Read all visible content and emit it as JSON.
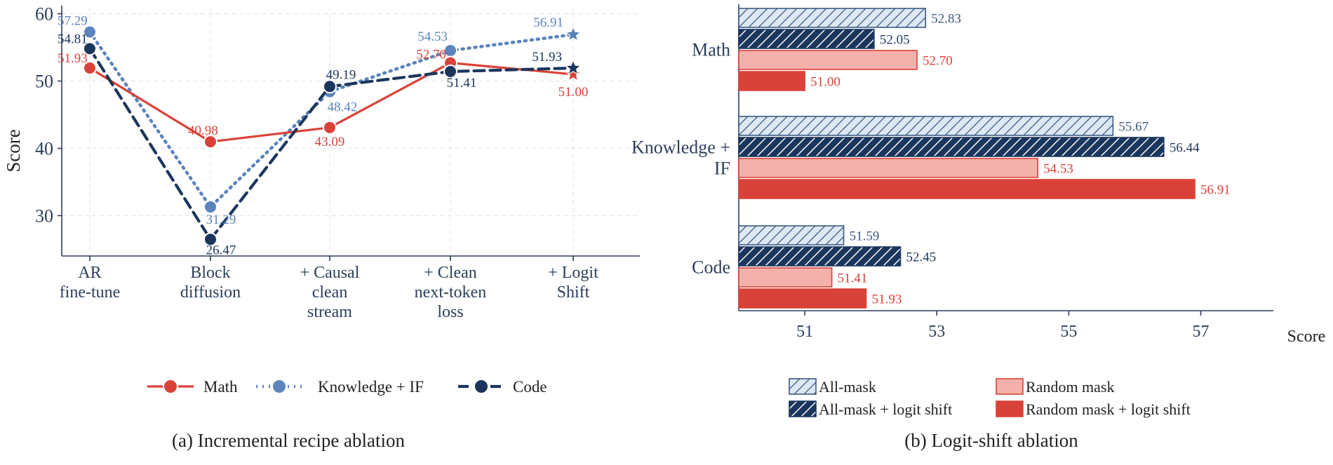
{
  "colors": {
    "math": "#d94238",
    "knowledge": "#5b84bc",
    "code": "#1b365d",
    "allmask_fill": "#dde8f4",
    "allmask_stroke": "#3d5a80",
    "allmask_shift_fill": "#1b365d",
    "random_fill": "#f4b1ac",
    "random_stroke": "#d94238",
    "random_shift_fill": "#d94238",
    "axis": "#2b3f5c",
    "grid": "#e3e6ea",
    "text": "#2b3f5c"
  },
  "chart_data": [
    {
      "id": "a",
      "type": "line",
      "caption": "(a) Incremental recipe ablation",
      "ylabel": "Score",
      "ylim": [
        24,
        61
      ],
      "yticks": [
        30,
        40,
        50,
        60
      ],
      "grid": true,
      "legend_position": "bottom",
      "categories": [
        [
          "AR",
          "fine-tune"
        ],
        [
          "Block",
          "diffusion"
        ],
        [
          "+ Causal",
          "clean",
          "stream"
        ],
        [
          "+ Clean",
          "next-token",
          "loss"
        ],
        [
          "+ Logit",
          "Shift"
        ]
      ],
      "series": [
        {
          "name": "Math",
          "key": "math",
          "dash": "solid",
          "values": [
            51.93,
            40.98,
            43.09,
            52.7,
            51.0
          ],
          "labels": [
            "51.93",
            "40.98",
            "43.09",
            "52.70",
            "51.00"
          ]
        },
        {
          "name": "Knowledge + IF",
          "key": "knowledge",
          "dash": "dotted",
          "values": [
            57.29,
            31.29,
            48.42,
            54.53,
            56.91
          ],
          "labels": [
            "57.29",
            "31.29",
            "48.42",
            "54.53",
            "56.91"
          ]
        },
        {
          "name": "Code",
          "key": "code",
          "dash": "dashed",
          "values": [
            54.81,
            26.47,
            49.19,
            51.41,
            51.93
          ],
          "labels": [
            "54.81",
            "26.47",
            "49.19",
            "51.41",
            "51.93"
          ]
        }
      ]
    },
    {
      "id": "b",
      "type": "bar",
      "orientation": "horizontal",
      "caption": "(b) Logit-shift ablation",
      "xlabel": "Score",
      "xlim": [
        50,
        58.1
      ],
      "xticks": [
        51,
        53,
        55,
        57
      ],
      "legend_position": "bottom",
      "categories": [
        [
          "Math"
        ],
        [
          "Knowledge +",
          "IF"
        ],
        [
          "Code"
        ]
      ],
      "series": [
        {
          "name": "All-mask",
          "key": "allmask",
          "values": [
            52.83,
            55.67,
            51.59
          ],
          "labels": [
            "52.83",
            "55.67",
            "51.59"
          ]
        },
        {
          "name": "All-mask + logit shift",
          "key": "allmask_shift",
          "values": [
            52.05,
            56.44,
            52.45
          ],
          "labels": [
            "52.05",
            "56.44",
            "52.45"
          ]
        },
        {
          "name": "Random mask",
          "key": "random",
          "values": [
            52.7,
            54.53,
            51.41
          ],
          "labels": [
            "52.70",
            "54.53",
            "51.41"
          ]
        },
        {
          "name": "Random mask + logit shift",
          "key": "random_shift",
          "values": [
            51.0,
            56.91,
            51.93
          ],
          "labels": [
            "51.00",
            "56.91",
            "51.93"
          ]
        }
      ]
    }
  ]
}
